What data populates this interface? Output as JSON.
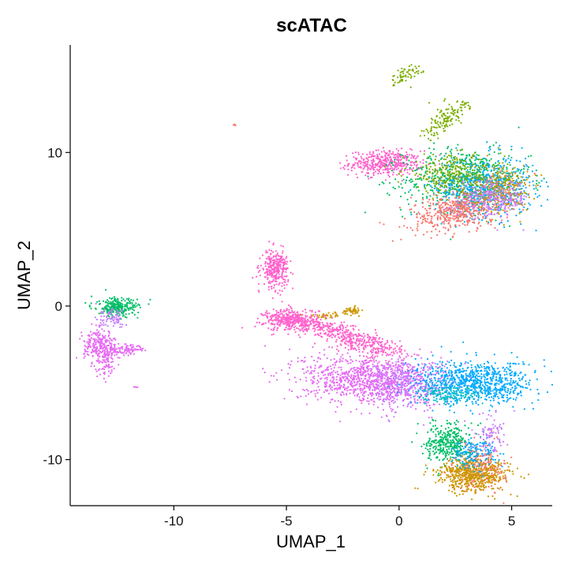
{
  "chart_data": {
    "type": "scatter",
    "title": "scATAC",
    "xlabel": "UMAP_1",
    "ylabel": "UMAP_2",
    "xlim": [
      -14.6,
      6.8
    ],
    "ylim": [
      -13.0,
      17.0
    ],
    "xticks": [
      -10,
      -5,
      0,
      5
    ],
    "yticks": [
      -10,
      0,
      10
    ],
    "xtick_labels": [
      "-10",
      "-5",
      "0",
      "5"
    ],
    "ytick_labels": [
      "-10",
      "0",
      "10"
    ],
    "grid": false,
    "legend": "none",
    "point_size": 1.1,
    "palette": [
      "#F8766D",
      "#CD9600",
      "#7CAE00",
      "#00BE67",
      "#00BFC4",
      "#00A9FF",
      "#C77CFF",
      "#FF61CC",
      "#E76BF3"
    ],
    "clusters": [
      {
        "cx": 0.3,
        "cy": 15.0,
        "sx": 0.25,
        "sy": 0.5,
        "n": 60,
        "color": "#7CAE00",
        "rot": -0.8
      },
      {
        "cx": 2.1,
        "cy": 12.2,
        "sx": 0.3,
        "sy": 0.9,
        "n": 140,
        "color": "#7CAE00",
        "rot": -0.6
      },
      {
        "cx": -7.3,
        "cy": 11.8,
        "sx": 0.05,
        "sy": 0.05,
        "n": 4,
        "color": "#F8766D",
        "rot": 0
      },
      {
        "cx": -0.6,
        "cy": 9.3,
        "sx": 0.8,
        "sy": 0.4,
        "n": 420,
        "color": "#FF61CC",
        "rot": 0
      },
      {
        "cx": 3.0,
        "cy": 8.2,
        "sx": 1.4,
        "sy": 1.0,
        "n": 650,
        "color": "#00BE67",
        "rot": 0
      },
      {
        "cx": 3.8,
        "cy": 7.8,
        "sx": 1.1,
        "sy": 1.0,
        "n": 550,
        "color": "#00A9FF",
        "rot": 0
      },
      {
        "cx": 4.6,
        "cy": 7.6,
        "sx": 0.6,
        "sy": 0.8,
        "n": 250,
        "color": "#CD9600",
        "rot": 0
      },
      {
        "cx": 2.6,
        "cy": 6.2,
        "sx": 1.1,
        "sy": 0.6,
        "n": 500,
        "color": "#F8766D",
        "rot": 0.3
      },
      {
        "cx": 2.4,
        "cy": 8.6,
        "sx": 1.1,
        "sy": 0.6,
        "n": 300,
        "color": "#7CAE00",
        "rot": 0
      },
      {
        "cx": 4.2,
        "cy": 7.0,
        "sx": 0.8,
        "sy": 0.6,
        "n": 250,
        "color": "#C77CFF",
        "rot": 0
      },
      {
        "cx": -5.5,
        "cy": 2.4,
        "sx": 0.3,
        "sy": 0.6,
        "n": 300,
        "color": "#FF61CC",
        "rot": 0
      },
      {
        "cx": -4.8,
        "cy": -0.9,
        "sx": 0.6,
        "sy": 0.35,
        "n": 380,
        "color": "#FF61CC",
        "rot": 0
      },
      {
        "cx": -3.0,
        "cy": -1.6,
        "sx": 1.0,
        "sy": 0.3,
        "n": 250,
        "color": "#FF61CC",
        "rot": -0.35
      },
      {
        "cx": -1.3,
        "cy": -2.6,
        "sx": 0.9,
        "sy": 0.35,
        "n": 220,
        "color": "#FF61CC",
        "rot": -0.35
      },
      {
        "cx": -2.1,
        "cy": -0.3,
        "sx": 0.2,
        "sy": 0.12,
        "n": 50,
        "color": "#CD9600",
        "rot": 0
      },
      {
        "cx": -3.2,
        "cy": -0.6,
        "sx": 0.4,
        "sy": 0.1,
        "n": 30,
        "color": "#CD9600",
        "rot": 0
      },
      {
        "cx": -1.3,
        "cy": -4.8,
        "sx": 1.5,
        "sy": 0.8,
        "n": 1000,
        "color": "#E76BF3",
        "rot": -0.1
      },
      {
        "cx": 0.2,
        "cy": -5.0,
        "sx": 0.9,
        "sy": 0.8,
        "n": 350,
        "color": "#C77CFF",
        "rot": 0
      },
      {
        "cx": 3.4,
        "cy": -5.0,
        "sx": 1.3,
        "sy": 0.7,
        "n": 850,
        "color": "#00A9FF",
        "rot": 0
      },
      {
        "cx": 2.3,
        "cy": -5.8,
        "sx": 0.7,
        "sy": 0.3,
        "n": 140,
        "color": "#00BFC4",
        "rot": 0
      },
      {
        "cx": 2.2,
        "cy": -8.9,
        "sx": 0.5,
        "sy": 0.65,
        "n": 350,
        "color": "#00BE67",
        "rot": 0
      },
      {
        "cx": 3.6,
        "cy": -10.5,
        "sx": 0.55,
        "sy": 0.75,
        "n": 250,
        "color": "#F8766D",
        "rot": 0
      },
      {
        "cx": 3.3,
        "cy": -11.0,
        "sx": 0.8,
        "sy": 0.55,
        "n": 550,
        "color": "#CD9600",
        "rot": 0
      },
      {
        "cx": 3.3,
        "cy": -9.6,
        "sx": 0.5,
        "sy": 0.5,
        "n": 150,
        "color": "#00A9FF",
        "rot": 0
      },
      {
        "cx": 4.0,
        "cy": -8.3,
        "sx": 0.4,
        "sy": 0.6,
        "n": 80,
        "color": "#C77CFF",
        "rot": 0
      },
      {
        "cx": -12.5,
        "cy": -0.1,
        "sx": 0.45,
        "sy": 0.3,
        "n": 260,
        "color": "#00BE67",
        "rot": 0
      },
      {
        "cx": -12.7,
        "cy": -0.8,
        "sx": 0.35,
        "sy": 0.3,
        "n": 80,
        "color": "#C77CFF",
        "rot": 0
      },
      {
        "cx": -13.3,
        "cy": -2.5,
        "sx": 0.35,
        "sy": 0.45,
        "n": 200,
        "color": "#E76BF3",
        "rot": 0
      },
      {
        "cx": -12.3,
        "cy": -2.8,
        "sx": 0.55,
        "sy": 0.18,
        "n": 120,
        "color": "#E76BF3",
        "rot": 0
      },
      {
        "cx": -13.1,
        "cy": -3.6,
        "sx": 0.25,
        "sy": 0.5,
        "n": 100,
        "color": "#E76BF3",
        "rot": 0
      },
      {
        "cx": -11.7,
        "cy": -5.3,
        "sx": 0.05,
        "sy": 0.05,
        "n": 4,
        "color": "#E76BF3",
        "rot": 0
      }
    ]
  }
}
